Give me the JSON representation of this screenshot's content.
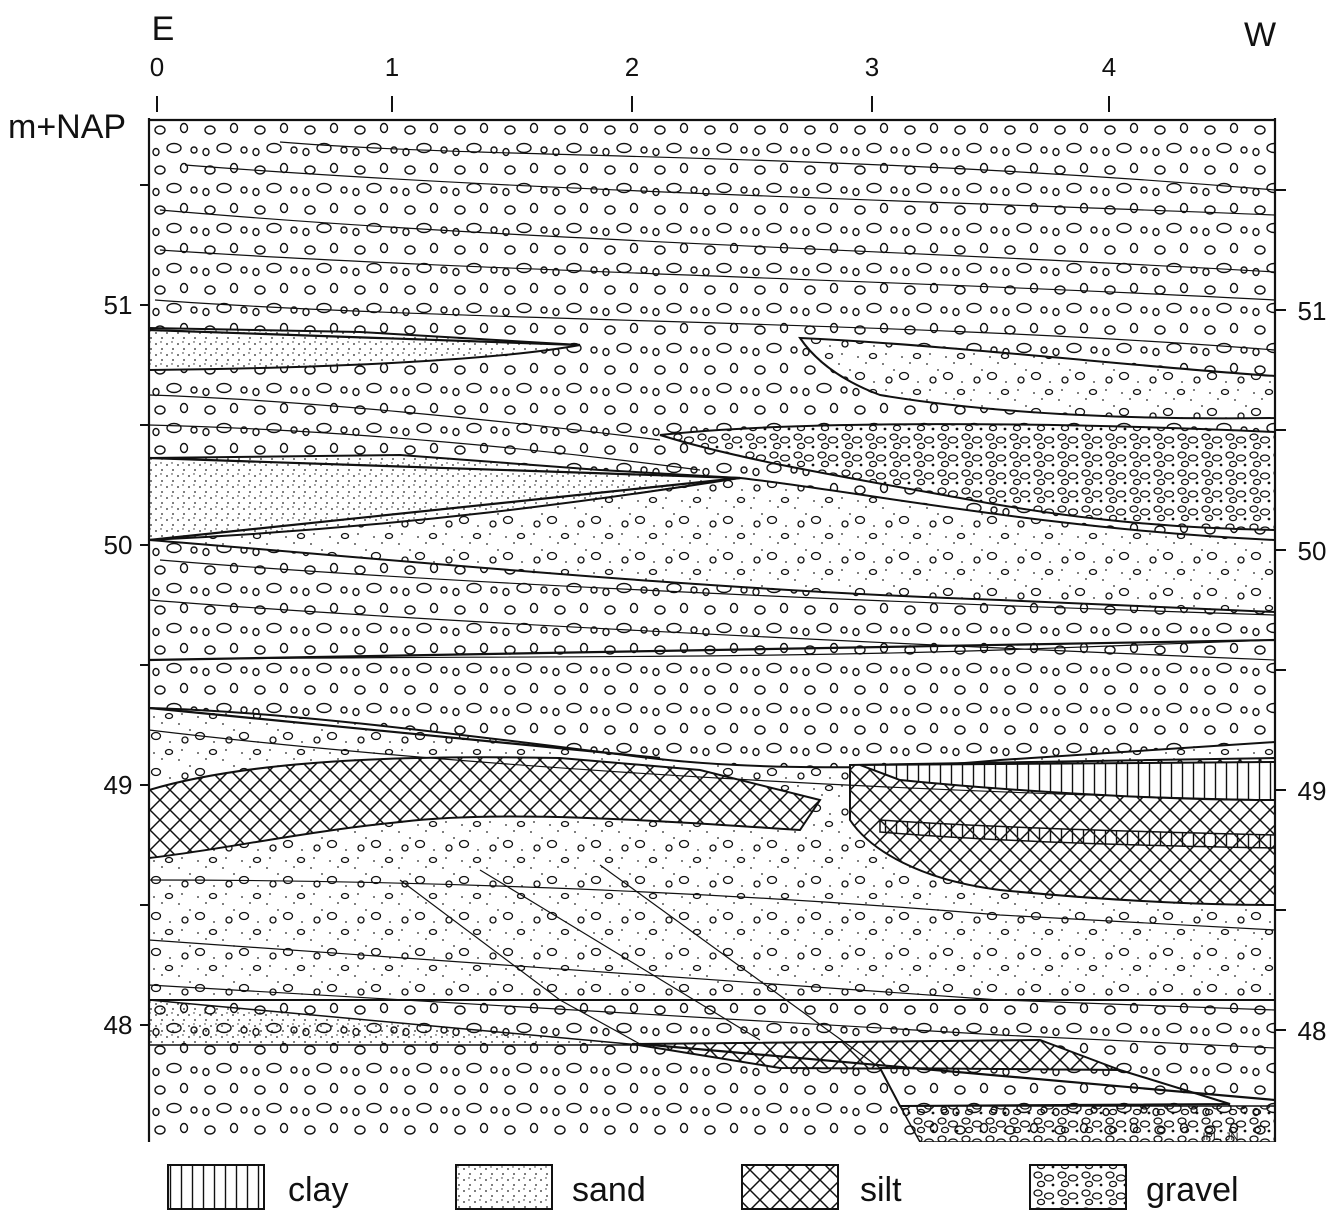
{
  "header": {
    "left_direction": "E",
    "right_direction": "W",
    "top_ticks": [
      "0",
      "1",
      "2",
      "3",
      "4"
    ],
    "y_axis_unit": "m+NAP"
  },
  "elevation_labels_left": [
    "51",
    "50",
    "49",
    "48"
  ],
  "elevation_labels_right": [
    "51",
    "50",
    "49",
    "48"
  ],
  "signature": "IPL. JN.",
  "legend": {
    "items": [
      {
        "key": "clay",
        "label": "clay",
        "pattern": "vertical-lines"
      },
      {
        "key": "sand",
        "label": "sand",
        "pattern": "fine-dots"
      },
      {
        "key": "silt",
        "label": "silt",
        "pattern": "cross-hatch"
      },
      {
        "key": "gravel",
        "label": "gravel",
        "pattern": "small-circles"
      }
    ]
  },
  "colors": {
    "ink": "#111111",
    "paper": "#ffffff"
  }
}
